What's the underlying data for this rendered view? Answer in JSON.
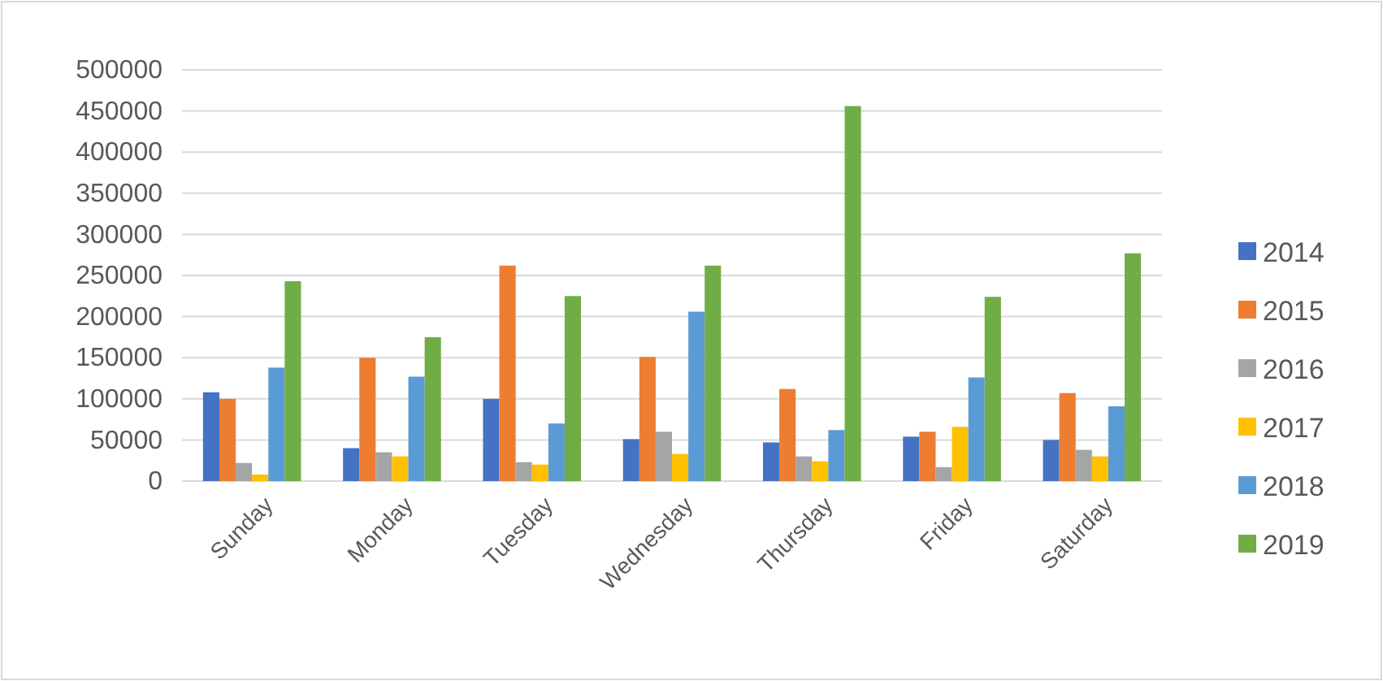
{
  "chart_data": {
    "type": "bar",
    "categories": [
      "Sunday",
      "Monday",
      "Tuesday",
      "Wednesday",
      "Thursday",
      "Friday",
      "Saturday"
    ],
    "series": [
      {
        "name": "2014",
        "color": "#4472c4",
        "values": [
          108000,
          40000,
          100000,
          51000,
          47000,
          54000,
          50000
        ]
      },
      {
        "name": "2015",
        "color": "#ed7d31",
        "values": [
          100000,
          150000,
          262000,
          151000,
          112000,
          60000,
          107000
        ]
      },
      {
        "name": "2016",
        "color": "#a5a5a5",
        "values": [
          22000,
          35000,
          23000,
          60000,
          30000,
          17000,
          38000
        ]
      },
      {
        "name": "2017",
        "color": "#ffc000",
        "values": [
          8000,
          30000,
          20000,
          33000,
          24000,
          66000,
          30000
        ]
      },
      {
        "name": "2018",
        "color": "#5b9bd5",
        "values": [
          138000,
          127000,
          70000,
          206000,
          62000,
          126000,
          91000
        ]
      },
      {
        "name": "2019",
        "color": "#70ad47",
        "values": [
          243000,
          175000,
          225000,
          262000,
          456000,
          224000,
          277000
        ]
      }
    ],
    "ylim": [
      0,
      500000
    ],
    "yticks": [
      0,
      50000,
      100000,
      150000,
      200000,
      250000,
      300000,
      350000,
      400000,
      450000,
      500000
    ],
    "grid": "y",
    "legend": "right"
  }
}
